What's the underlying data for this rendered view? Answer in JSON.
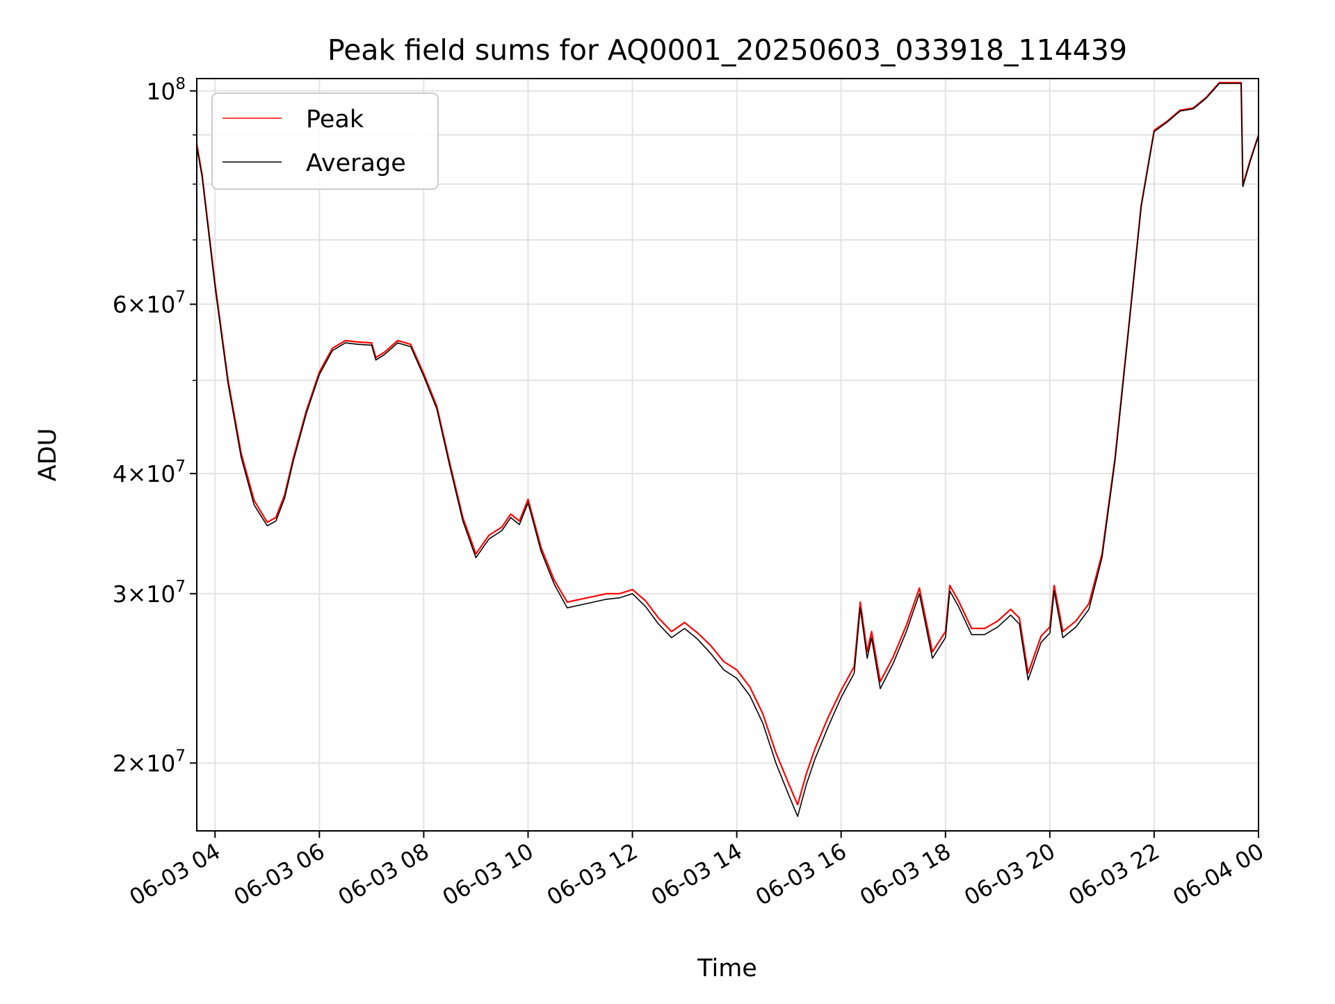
{
  "chart_data": {
    "type": "line",
    "title": "Peak field sums for AQ0001_20250603_033918_114439",
    "xlabel": "Time",
    "ylabel": "ADU",
    "y_scale": "log",
    "xlim": [
      "2025-06-03 03:39",
      "2025-06-04 00:00"
    ],
    "ylim": [
      17000000,
      103000000
    ],
    "grid": true,
    "legend_position": "top-left",
    "x_ticks": [
      {
        "value": "2025-06-03 04:00",
        "label": "06-03 04"
      },
      {
        "value": "2025-06-03 06:00",
        "label": "06-03 06"
      },
      {
        "value": "2025-06-03 08:00",
        "label": "06-03 08"
      },
      {
        "value": "2025-06-03 10:00",
        "label": "06-03 10"
      },
      {
        "value": "2025-06-03 12:00",
        "label": "06-03 12"
      },
      {
        "value": "2025-06-03 14:00",
        "label": "06-03 14"
      },
      {
        "value": "2025-06-03 16:00",
        "label": "06-03 16"
      },
      {
        "value": "2025-06-03 18:00",
        "label": "06-03 18"
      },
      {
        "value": "2025-06-03 20:00",
        "label": "06-03 20"
      },
      {
        "value": "2025-06-03 22:00",
        "label": "06-03 22"
      },
      {
        "value": "2025-06-04 00:00",
        "label": "06-04 00"
      }
    ],
    "y_ticks": [
      {
        "value": 20000000,
        "mantissa": "2",
        "exponent": "7"
      },
      {
        "value": 30000000,
        "mantissa": "3",
        "exponent": "7"
      },
      {
        "value": 40000000,
        "mantissa": "4",
        "exponent": "7"
      },
      {
        "value": 60000000,
        "mantissa": "6",
        "exponent": "7"
      },
      {
        "value": 100000000,
        "mantissa": "",
        "exponent": "8"
      }
    ],
    "y_minor_ticks": [
      50000000,
      70000000,
      80000000,
      90000000
    ],
    "x": [
      "2025-06-03 03:39",
      "2025-06-03 03:45",
      "2025-06-03 04:00",
      "2025-06-03 04:15",
      "2025-06-03 04:30",
      "2025-06-03 04:45",
      "2025-06-03 05:00",
      "2025-06-03 05:10",
      "2025-06-03 05:20",
      "2025-06-03 05:30",
      "2025-06-03 05:45",
      "2025-06-03 06:00",
      "2025-06-03 06:15",
      "2025-06-03 06:30",
      "2025-06-03 06:45",
      "2025-06-03 07:00",
      "2025-06-03 07:05",
      "2025-06-03 07:15",
      "2025-06-03 07:30",
      "2025-06-03 07:45",
      "2025-06-03 08:00",
      "2025-06-03 08:15",
      "2025-06-03 08:30",
      "2025-06-03 08:45",
      "2025-06-03 09:00",
      "2025-06-03 09:15",
      "2025-06-03 09:30",
      "2025-06-03 09:40",
      "2025-06-03 09:50",
      "2025-06-03 10:00",
      "2025-06-03 10:15",
      "2025-06-03 10:30",
      "2025-06-03 10:45",
      "2025-06-03 11:00",
      "2025-06-03 11:15",
      "2025-06-03 11:30",
      "2025-06-03 11:45",
      "2025-06-03 12:00",
      "2025-06-03 12:15",
      "2025-06-03 12:30",
      "2025-06-03 12:45",
      "2025-06-03 13:00",
      "2025-06-03 13:15",
      "2025-06-03 13:30",
      "2025-06-03 13:45",
      "2025-06-03 14:00",
      "2025-06-03 14:15",
      "2025-06-03 14:30",
      "2025-06-03 14:45",
      "2025-06-03 15:00",
      "2025-06-03 15:10",
      "2025-06-03 15:20",
      "2025-06-03 15:30",
      "2025-06-03 15:45",
      "2025-06-03 16:00",
      "2025-06-03 16:15",
      "2025-06-03 16:22",
      "2025-06-03 16:30",
      "2025-06-03 16:35",
      "2025-06-03 16:45",
      "2025-06-03 17:00",
      "2025-06-03 17:15",
      "2025-06-03 17:30",
      "2025-06-03 17:45",
      "2025-06-03 18:00",
      "2025-06-03 18:05",
      "2025-06-03 18:15",
      "2025-06-03 18:30",
      "2025-06-03 18:45",
      "2025-06-03 19:00",
      "2025-06-03 19:15",
      "2025-06-03 19:25",
      "2025-06-03 19:35",
      "2025-06-03 19:50",
      "2025-06-03 20:00",
      "2025-06-03 20:05",
      "2025-06-03 20:15",
      "2025-06-03 20:30",
      "2025-06-03 20:45",
      "2025-06-03 21:00",
      "2025-06-03 21:15",
      "2025-06-03 21:30",
      "2025-06-03 21:45",
      "2025-06-03 22:00",
      "2025-06-03 22:15",
      "2025-06-03 22:30",
      "2025-06-03 22:45",
      "2025-06-03 23:00",
      "2025-06-03 23:15",
      "2025-06-03 23:30",
      "2025-06-03 23:40",
      "2025-06-03 23:42",
      "2025-06-03 23:50",
      "2025-06-04 00:00"
    ],
    "series": [
      {
        "name": "Peak",
        "color": "#ff0000",
        "values": [
          88000000,
          82000000,
          63000000,
          50000000,
          42000000,
          37500000,
          35600000,
          36000000,
          38000000,
          41500000,
          46500000,
          51000000,
          54000000,
          55000000,
          54800000,
          54700000,
          52800000,
          53500000,
          55000000,
          54500000,
          50800000,
          47000000,
          41000000,
          36000000,
          33000000,
          34500000,
          35200000,
          36300000,
          35700000,
          37600000,
          33500000,
          31000000,
          29400000,
          29600000,
          29800000,
          30000000,
          30000000,
          30300000,
          29500000,
          28300000,
          27400000,
          28000000,
          27300000,
          26500000,
          25500000,
          25000000,
          24000000,
          22500000,
          20500000,
          19000000,
          18100000,
          19500000,
          20700000,
          22300000,
          23800000,
          25200000,
          29400000,
          26100000,
          27400000,
          24300000,
          25800000,
          27800000,
          30400000,
          26100000,
          27400000,
          30600000,
          29500000,
          27600000,
          27600000,
          28100000,
          28900000,
          28300000,
          24800000,
          27100000,
          27700000,
          30600000,
          27400000,
          28100000,
          29300000,
          33000000,
          41500000,
          56000000,
          76000000,
          91000000,
          93000000,
          95500000,
          96000000,
          98500000,
          102000000,
          102000000,
          102000000,
          79800000,
          84500000,
          90000000
        ]
      },
      {
        "name": "Average",
        "color": "#000000",
        "values": [
          87500000,
          81500000,
          62500000,
          49600000,
          41600000,
          37100000,
          35300000,
          35700000,
          37700000,
          41200000,
          46200000,
          50700000,
          53700000,
          54700000,
          54500000,
          54400000,
          52500000,
          53200000,
          54700000,
          54200000,
          50500000,
          46700000,
          40700000,
          35700000,
          32700000,
          34200000,
          34900000,
          36000000,
          35400000,
          37300000,
          33200000,
          30700000,
          29000000,
          29200000,
          29400000,
          29600000,
          29700000,
          30000000,
          29100000,
          27900000,
          27000000,
          27600000,
          26900000,
          26000000,
          25000000,
          24500000,
          23500000,
          22000000,
          20000000,
          18500000,
          17600000,
          19000000,
          20200000,
          21800000,
          23400000,
          24800000,
          29000000,
          25700000,
          27000000,
          23900000,
          25400000,
          27400000,
          30000000,
          25700000,
          27000000,
          30200000,
          29100000,
          27200000,
          27200000,
          27700000,
          28500000,
          27900000,
          24400000,
          26700000,
          27300000,
          30200000,
          27000000,
          27700000,
          28900000,
          32700000,
          41200000,
          55700000,
          75700000,
          90700000,
          92800000,
          95300000,
          95800000,
          98300000,
          101800000,
          101800000,
          101800000,
          79500000,
          84200000,
          89800000
        ]
      }
    ]
  }
}
